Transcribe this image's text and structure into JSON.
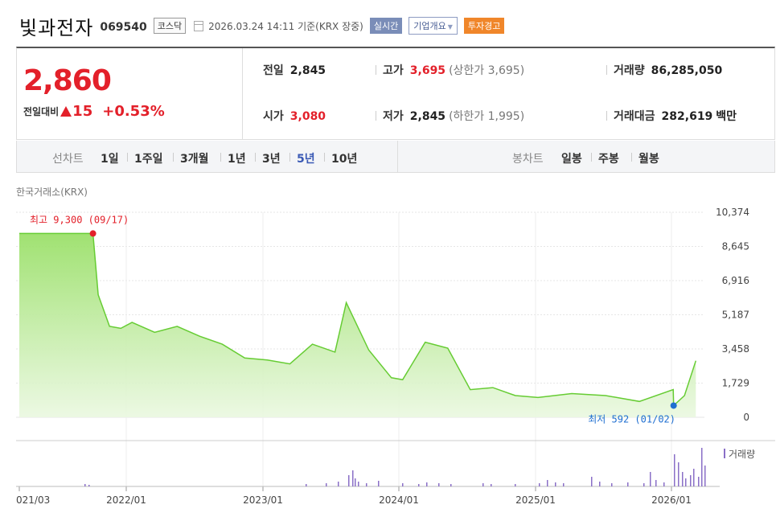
{
  "header": {
    "name": "빛과전자",
    "code": "069540",
    "market": "코스닥",
    "basis": "2026.03.24 14:11  기준(KRX 장중)",
    "btn_realtime": "실시간",
    "btn_company": "기업개요",
    "btn_warning": "투자경고"
  },
  "quote": {
    "price": "2,860",
    "change_label": "전일대비",
    "change": "15",
    "change_pct": "+0.53%",
    "prev_close_label": "전일",
    "prev_close": "2,845",
    "open_label": "시가",
    "open": "3,080",
    "high_label": "고가",
    "high": "3,695",
    "upper_limit": "(상한가 3,695)",
    "low_label": "저가",
    "low": "2,845",
    "lower_limit": "(하한가 1,995)",
    "volume_label": "거래량",
    "volume": "86,285,050",
    "amount_label": "거래대금",
    "amount": "282,619",
    "amount_unit": "백만"
  },
  "periods": {
    "label": "선차트",
    "items": [
      "1일",
      "1주일",
      "3개월",
      "1년",
      "3년",
      "5년",
      "10년"
    ],
    "active": "5년"
  },
  "candles": {
    "label": "봉차트",
    "items": [
      "일봉",
      "주봉",
      "월봉"
    ]
  },
  "chart_data": {
    "type": "area",
    "source_label": "한국거래소(KRX)",
    "x_ticks": [
      "021/03",
      "2022/01",
      "2023/01",
      "2024/01",
      "2025/01",
      "2026/01"
    ],
    "y_ticks": [
      "10,374",
      "8,645",
      "6,916",
      "5,187",
      "3,458",
      "1,729",
      "0"
    ],
    "ylim": [
      0,
      10374
    ],
    "max_label": "최고 9,300 (09/17)",
    "min_label": "최저 592 (01/02)",
    "volume_label": "거래량",
    "colors": {
      "line": "#66cc33",
      "fill_top": "#9be06a",
      "max_dot": "#e3202a",
      "min_dot": "#1f6fd1",
      "volume": "#8a6fc7"
    },
    "series": [
      {
        "x": "2021-03",
        "y": 9300
      },
      {
        "x": "2021-09-17",
        "y": 9300
      },
      {
        "x": "2021-10",
        "y": 6200
      },
      {
        "x": "2021-11",
        "y": 4600
      },
      {
        "x": "2021-12",
        "y": 4500
      },
      {
        "x": "2022-01",
        "y": 4800
      },
      {
        "x": "2022-03",
        "y": 4300
      },
      {
        "x": "2022-05",
        "y": 4600
      },
      {
        "x": "2022-07",
        "y": 4100
      },
      {
        "x": "2022-09",
        "y": 3700
      },
      {
        "x": "2022-11",
        "y": 3000
      },
      {
        "x": "2023-01",
        "y": 2900
      },
      {
        "x": "2023-03",
        "y": 2700
      },
      {
        "x": "2023-05",
        "y": 3700
      },
      {
        "x": "2023-07",
        "y": 3300
      },
      {
        "x": "2023-08",
        "y": 5800
      },
      {
        "x": "2023-10",
        "y": 3400
      },
      {
        "x": "2023-12",
        "y": 2000
      },
      {
        "x": "2024-01",
        "y": 1900
      },
      {
        "x": "2024-03",
        "y": 3800
      },
      {
        "x": "2024-05",
        "y": 3500
      },
      {
        "x": "2024-07",
        "y": 1400
      },
      {
        "x": "2024-09",
        "y": 1500
      },
      {
        "x": "2024-11",
        "y": 1100
      },
      {
        "x": "2025-01",
        "y": 1000
      },
      {
        "x": "2025-04",
        "y": 1200
      },
      {
        "x": "2025-07",
        "y": 1100
      },
      {
        "x": "2025-10",
        "y": 800
      },
      {
        "x": "2026-01-02",
        "y": 592
      },
      {
        "x": "2026-01",
        "y": 1400
      },
      {
        "x": "2026-02",
        "y": 1100
      },
      {
        "x": "2026-03",
        "y": 2860
      }
    ]
  }
}
